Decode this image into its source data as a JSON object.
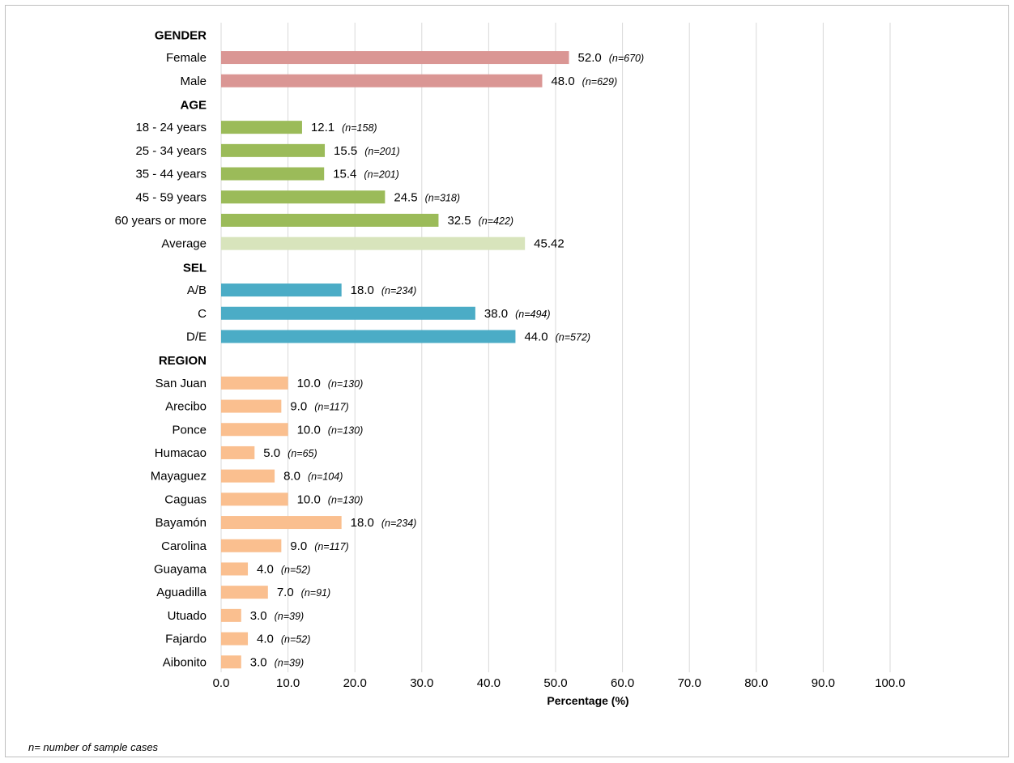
{
  "footnote": "n= number of sample cases",
  "colors": {
    "gender": "#da9694",
    "age": "#9bbb59",
    "age_average": "#d8e4bc",
    "sel": "#4bacc6",
    "region": "#fabf8f",
    "grid": "#d9d9d9"
  },
  "chart_data": {
    "type": "bar",
    "orientation": "horizontal",
    "xlabel": "Percentage (%)",
    "xlim": [
      0,
      100
    ],
    "xticks": [
      "0.0",
      "10.0",
      "20.0",
      "30.0",
      "40.0",
      "50.0",
      "60.0",
      "70.0",
      "80.0",
      "90.0",
      "100.0"
    ],
    "grid": "vertical",
    "rows": [
      {
        "kind": "group",
        "label": "GENDER"
      },
      {
        "kind": "bar",
        "label": "Female",
        "value": 52.0,
        "value_label": "52.0",
        "n_label": "(n=670)",
        "color": "#da9694"
      },
      {
        "kind": "bar",
        "label": "Male",
        "value": 48.0,
        "value_label": "48.0",
        "n_label": "(n=629)",
        "color": "#da9694"
      },
      {
        "kind": "group",
        "label": "AGE"
      },
      {
        "kind": "bar",
        "label": "18 - 24 years",
        "value": 12.1,
        "value_label": "12.1",
        "n_label": "(n=158)",
        "color": "#9bbb59"
      },
      {
        "kind": "bar",
        "label": "25 - 34 years",
        "value": 15.5,
        "value_label": "15.5",
        "n_label": "(n=201)",
        "color": "#9bbb59"
      },
      {
        "kind": "bar",
        "label": "35 - 44 years",
        "value": 15.4,
        "value_label": "15.4",
        "n_label": "(n=201)",
        "color": "#9bbb59"
      },
      {
        "kind": "bar",
        "label": "45 - 59 years",
        "value": 24.5,
        "value_label": "24.5",
        "n_label": "(n=318)",
        "color": "#9bbb59"
      },
      {
        "kind": "bar",
        "label": "60 years or more",
        "value": 32.5,
        "value_label": "32.5",
        "n_label": "(n=422)",
        "color": "#9bbb59"
      },
      {
        "kind": "bar",
        "label": "Average",
        "value": 45.42,
        "value_label": "45.42",
        "n_label": "",
        "color": "#d8e4bc"
      },
      {
        "kind": "group",
        "label": "SEL"
      },
      {
        "kind": "bar",
        "label": "A/B",
        "value": 18.0,
        "value_label": "18.0",
        "n_label": "(n=234)",
        "color": "#4bacc6"
      },
      {
        "kind": "bar",
        "label": "C",
        "value": 38.0,
        "value_label": "38.0",
        "n_label": "(n=494)",
        "color": "#4bacc6"
      },
      {
        "kind": "bar",
        "label": "D/E",
        "value": 44.0,
        "value_label": "44.0",
        "n_label": "(n=572)",
        "color": "#4bacc6"
      },
      {
        "kind": "group",
        "label": "REGION"
      },
      {
        "kind": "bar",
        "label": "San Juan",
        "value": 10.0,
        "value_label": "10.0",
        "n_label": "(n=130)",
        "color": "#fabf8f"
      },
      {
        "kind": "bar",
        "label": "Arecibo",
        "value": 9.0,
        "value_label": "9.0",
        "n_label": "(n=117)",
        "color": "#fabf8f"
      },
      {
        "kind": "bar",
        "label": "Ponce",
        "value": 10.0,
        "value_label": "10.0",
        "n_label": "(n=130)",
        "color": "#fabf8f"
      },
      {
        "kind": "bar",
        "label": "Humacao",
        "value": 5.0,
        "value_label": "5.0",
        "n_label": "(n=65)",
        "color": "#fabf8f"
      },
      {
        "kind": "bar",
        "label": "Mayaguez",
        "value": 8.0,
        "value_label": "8.0",
        "n_label": "(n=104)",
        "color": "#fabf8f"
      },
      {
        "kind": "bar",
        "label": "Caguas",
        "value": 10.0,
        "value_label": "10.0",
        "n_label": "(n=130)",
        "color": "#fabf8f"
      },
      {
        "kind": "bar",
        "label": "Bayamón",
        "value": 18.0,
        "value_label": "18.0",
        "n_label": "(n=234)",
        "color": "#fabf8f"
      },
      {
        "kind": "bar",
        "label": "Carolina",
        "value": 9.0,
        "value_label": "9.0",
        "n_label": "(n=117)",
        "color": "#fabf8f"
      },
      {
        "kind": "bar",
        "label": "Guayama",
        "value": 4.0,
        "value_label": "4.0",
        "n_label": "(n=52)",
        "color": "#fabf8f"
      },
      {
        "kind": "bar",
        "label": "Aguadilla",
        "value": 7.0,
        "value_label": "7.0",
        "n_label": "(n=91)",
        "color": "#fabf8f"
      },
      {
        "kind": "bar",
        "label": "Utuado",
        "value": 3.0,
        "value_label": "3.0",
        "n_label": "(n=39)",
        "color": "#fabf8f"
      },
      {
        "kind": "bar",
        "label": "Fajardo",
        "value": 4.0,
        "value_label": "4.0",
        "n_label": "(n=52)",
        "color": "#fabf8f"
      },
      {
        "kind": "bar",
        "label": "Aibonito",
        "value": 3.0,
        "value_label": "3.0",
        "n_label": "(n=39)",
        "color": "#fabf8f"
      }
    ]
  }
}
